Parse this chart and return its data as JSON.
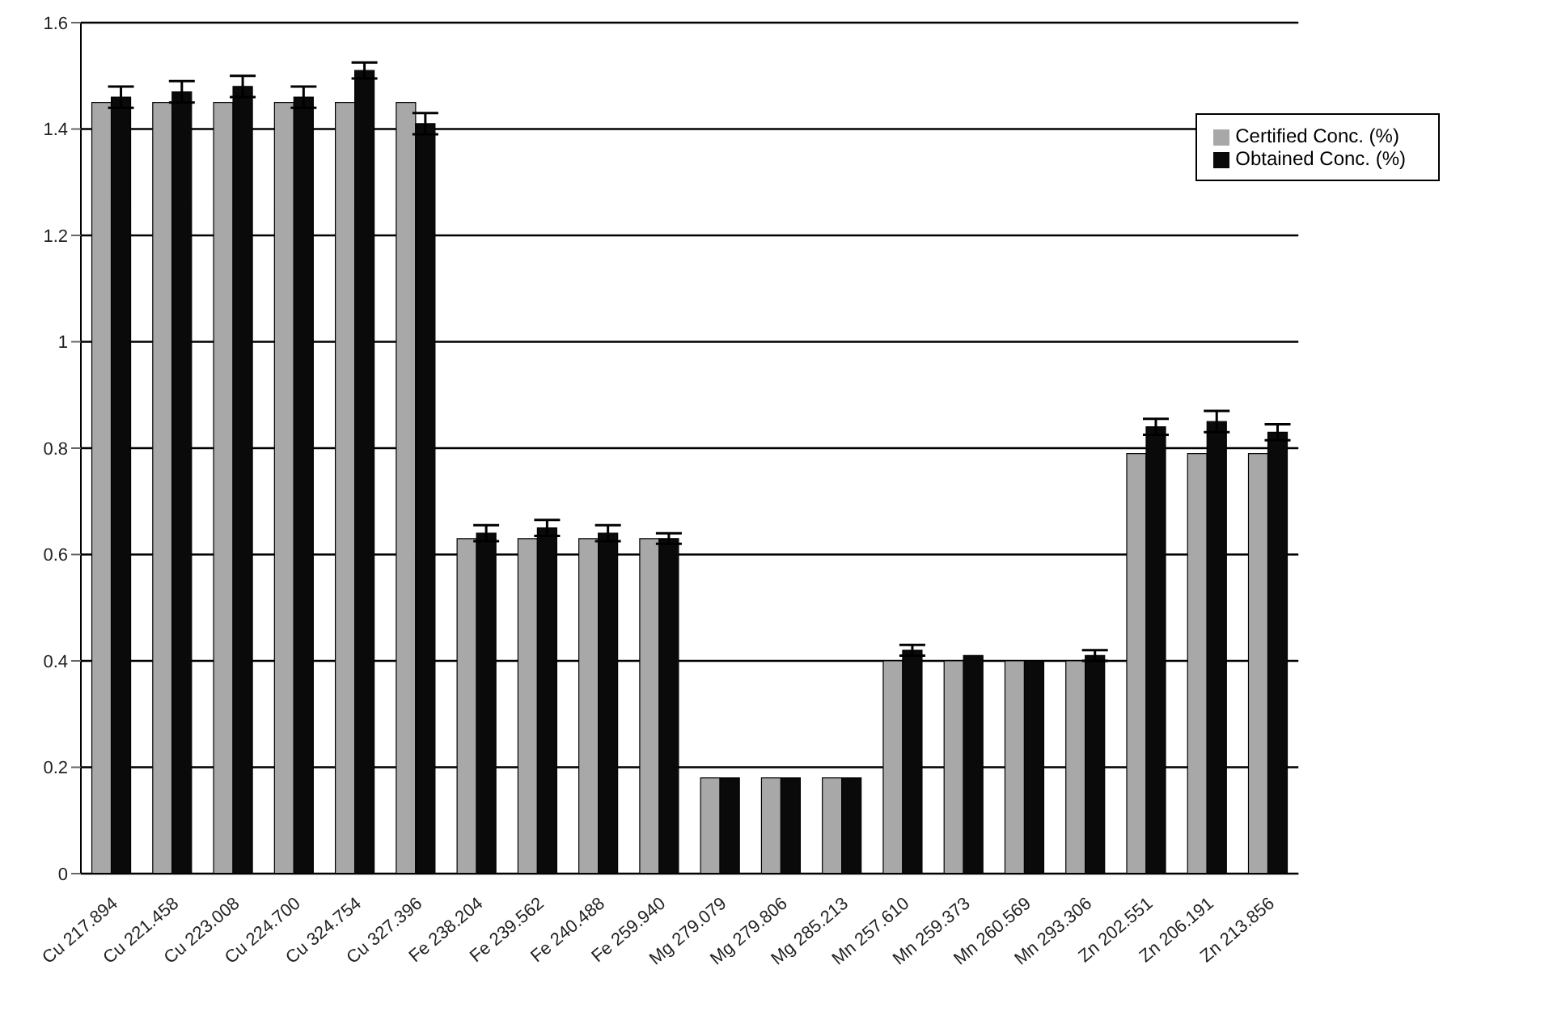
{
  "chart_data": {
    "type": "bar",
    "categories": [
      "Cu 217.894",
      "Cu 221.458",
      "Cu 223.008",
      "Cu 224.700",
      "Cu 324.754",
      "Cu 327.396",
      "Fe 238.204",
      "Fe 239.562",
      "Fe 240.488",
      "Fe 259.940",
      "Mg 279.079",
      "Mg 279.806",
      "Mg 285.213",
      "Mn 257.610",
      "Mn 259.373",
      "Mn 260.569",
      "Mn 293.306",
      "Zn 202.551",
      "Zn 206.191",
      "Zn 213.856"
    ],
    "series": [
      {
        "name": "Certified Conc. (%)",
        "color": "#a8a8a8",
        "values": [
          1.45,
          1.45,
          1.45,
          1.45,
          1.45,
          1.45,
          0.63,
          0.63,
          0.63,
          0.63,
          0.18,
          0.18,
          0.18,
          0.4,
          0.4,
          0.4,
          0.4,
          0.79,
          0.79,
          0.79
        ]
      },
      {
        "name": "Obtained Conc. (%)",
        "color": "#0a0a0a",
        "values": [
          1.46,
          1.47,
          1.48,
          1.46,
          1.51,
          1.41,
          0.64,
          0.65,
          0.64,
          0.63,
          0.18,
          0.18,
          0.18,
          0.42,
          0.41,
          0.4,
          0.41,
          0.84,
          0.85,
          0.83
        ],
        "errors": [
          0.02,
          0.02,
          0.02,
          0.02,
          0.015,
          0.02,
          0.015,
          0.015,
          0.015,
          0.01,
          null,
          null,
          null,
          0.01,
          null,
          null,
          0.01,
          0.015,
          0.02,
          0.015
        ]
      }
    ],
    "ylim": [
      0,
      1.6
    ],
    "yticks": [
      0,
      0.2,
      0.4,
      0.6,
      0.8,
      1,
      1.2,
      1.4,
      1.6
    ],
    "grid": "y",
    "legend": "top right"
  }
}
